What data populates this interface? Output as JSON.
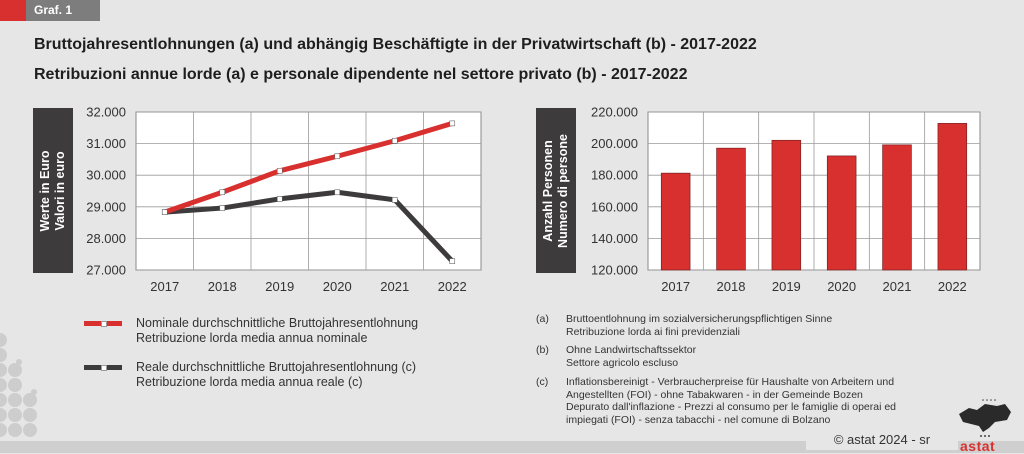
{
  "header": {
    "tag": "Graf. 1",
    "title_de": "Bruttojahresentlohnungen (a) und abhängig Beschäftigte in der Privatwirtschaft (b) - 2017-2022",
    "title_it": "Retribuzioni annue lorde (a) e personale dipendente nel settore privato (b) - 2017-2022"
  },
  "colors": {
    "red": "#d7302f",
    "dark": "#3d3b3b",
    "grey_tag": "#7d7d7d"
  },
  "chart_data": [
    {
      "type": "line",
      "categories": [
        "2017",
        "2018",
        "2019",
        "2020",
        "2021",
        "2022"
      ],
      "ylabel_de": "Werte in Euro",
      "ylabel_it": "Valori in euro",
      "ylim": [
        27000,
        32000
      ],
      "yticks": [
        27000,
        28000,
        29000,
        30000,
        31000,
        32000
      ],
      "ytick_labels": [
        "27.000",
        "28.000",
        "29.000",
        "30.000",
        "31.000",
        "32.000"
      ],
      "grid": true,
      "series": [
        {
          "name_de": "Nominale durchschnittliche Bruttojahresentlohnung",
          "name_it": "Retribuzione lorda media annua nominale",
          "color": "#d7302f",
          "values": [
            28830,
            29460,
            30140,
            30600,
            31090,
            31640
          ]
        },
        {
          "name_de": "Reale durchschnittliche Bruttojahresentlohnung (c)",
          "name_it": "Retribuzione lorda media annua reale (c)",
          "color": "#3d3b3b",
          "values": [
            28830,
            28960,
            29250,
            29460,
            29220,
            27280
          ]
        }
      ],
      "legend": "bottom"
    },
    {
      "type": "bar",
      "categories": [
        "2017",
        "2018",
        "2019",
        "2020",
        "2021",
        "2022"
      ],
      "ylabel_de": "Anzahl Personen",
      "ylabel_it": "Numero di persone",
      "ylim": [
        120000,
        220000
      ],
      "yticks": [
        120000,
        140000,
        160000,
        180000,
        200000,
        220000
      ],
      "ytick_labels": [
        "120.000",
        "140.000",
        "160.000",
        "180.000",
        "200.000",
        "220.000"
      ],
      "grid": true,
      "values": [
        181300,
        197100,
        202100,
        192200,
        199200,
        212800
      ],
      "color": "#d7302f"
    }
  ],
  "notes": [
    {
      "key": "(a)",
      "lines": [
        "Bruttoentlohnung im sozialversicherungspflichtigen Sinne",
        "Retribuzione lorda ai fini previdenziali"
      ]
    },
    {
      "key": "(b)",
      "lines": [
        "Ohne Landwirtschaftssektor",
        "Settore agricolo escluso"
      ]
    },
    {
      "key": "(c)",
      "lines": [
        "Inflationsbereinigt - Verbraucherpreise für Haushalte von Arbeitern und",
        "Angestellten (FOI) - ohne Tabakwaren - in der Gemeinde Bozen",
        "Depurato dall'inflazione - Prezzi al consumo per le famiglie di operai ed",
        "impiegati (FOI) - senza tabacchi - nel comune di Bolzano"
      ]
    }
  ],
  "footer": {
    "copyright": "©  astat 2024 - sr",
    "logo_text": "astat"
  }
}
